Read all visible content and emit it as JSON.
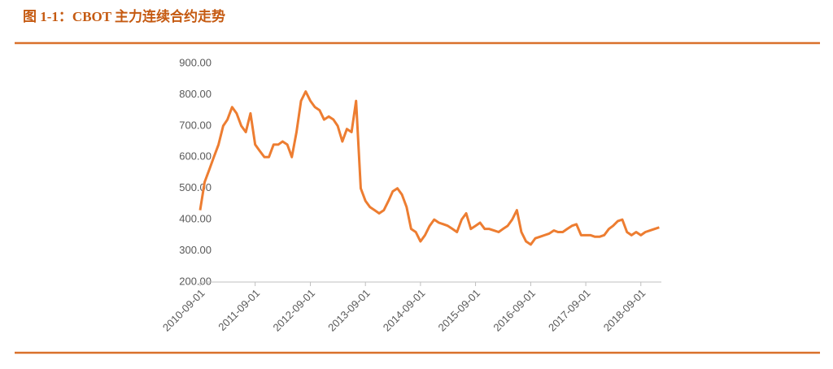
{
  "chart_data": {
    "type": "line",
    "title": "图 1-1：CBOT 主力连续合约走势",
    "x": [
      "2010-09-01",
      "2010-10-01",
      "2010-11-01",
      "2010-12-01",
      "2011-01-01",
      "2011-02-01",
      "2011-03-01",
      "2011-04-01",
      "2011-05-01",
      "2011-06-01",
      "2011-07-01",
      "2011-08-01",
      "2011-09-01",
      "2011-10-01",
      "2011-11-01",
      "2011-12-01",
      "2012-01-01",
      "2012-02-01",
      "2012-03-01",
      "2012-04-01",
      "2012-05-01",
      "2012-06-01",
      "2012-07-01",
      "2012-08-01",
      "2012-09-01",
      "2012-10-01",
      "2012-11-01",
      "2012-12-01",
      "2013-01-01",
      "2013-02-01",
      "2013-03-01",
      "2013-04-01",
      "2013-05-01",
      "2013-06-01",
      "2013-07-01",
      "2013-08-01",
      "2013-09-01",
      "2013-10-01",
      "2013-11-01",
      "2013-12-01",
      "2014-01-01",
      "2014-02-01",
      "2014-03-01",
      "2014-04-01",
      "2014-05-01",
      "2014-06-01",
      "2014-07-01",
      "2014-08-01",
      "2014-09-01",
      "2014-10-01",
      "2014-11-01",
      "2014-12-01",
      "2015-01-01",
      "2015-02-01",
      "2015-03-01",
      "2015-04-01",
      "2015-05-01",
      "2015-06-01",
      "2015-07-01",
      "2015-08-01",
      "2015-09-01",
      "2015-10-01",
      "2015-11-01",
      "2015-12-01",
      "2016-01-01",
      "2016-02-01",
      "2016-03-01",
      "2016-04-01",
      "2016-05-01",
      "2016-06-01",
      "2016-07-01",
      "2016-08-01",
      "2016-09-01",
      "2016-10-01",
      "2016-11-01",
      "2016-12-01",
      "2017-01-01",
      "2017-02-01",
      "2017-03-01",
      "2017-04-01",
      "2017-05-01",
      "2017-06-01",
      "2017-07-01",
      "2017-08-01",
      "2017-09-01",
      "2017-10-01",
      "2017-11-01",
      "2017-12-01",
      "2018-01-01",
      "2018-02-01",
      "2018-03-01",
      "2018-04-01",
      "2018-05-01",
      "2018-06-01",
      "2018-07-01",
      "2018-08-01",
      "2018-09-01",
      "2018-10-01",
      "2018-11-01",
      "2018-12-01",
      "2019-01-01"
    ],
    "series": [
      {
        "color": "#ed7d31",
        "values": [
          430,
          520,
          560,
          600,
          640,
          700,
          720,
          760,
          740,
          700,
          680,
          740,
          640,
          620,
          600,
          600,
          640,
          640,
          650,
          640,
          600,
          680,
          780,
          810,
          780,
          760,
          750,
          720,
          730,
          720,
          700,
          650,
          690,
          680,
          780,
          500,
          460,
          440,
          430,
          420,
          430,
          460,
          490,
          500,
          480,
          440,
          370,
          360,
          330,
          350,
          380,
          400,
          390,
          385,
          380,
          370,
          360,
          400,
          420,
          370,
          380,
          390,
          370,
          370,
          365,
          360,
          370,
          380,
          400,
          430,
          360,
          330,
          320,
          340,
          345,
          350,
          355,
          365,
          360,
          360,
          370,
          380,
          385,
          350,
          350,
          350,
          345,
          345,
          350,
          370,
          380,
          395,
          400,
          360,
          350,
          360,
          350,
          360,
          365,
          370,
          375
        ]
      }
    ],
    "xlim": [
      "2010-09-01",
      "2019-01-15"
    ],
    "xticks": [
      "2010-09-01",
      "2011-09-01",
      "2012-09-01",
      "2013-09-01",
      "2014-09-01",
      "2015-09-01",
      "2016-09-01",
      "2017-09-01",
      "2018-09-01"
    ],
    "ylim": [
      200,
      900
    ],
    "yticks": [
      {
        "value": 200,
        "label": "200.00"
      },
      {
        "value": 300,
        "label": "300.00"
      },
      {
        "value": 400,
        "label": "400.00"
      },
      {
        "value": 500,
        "label": "500.00"
      },
      {
        "value": 600,
        "label": "600.00"
      },
      {
        "value": 700,
        "label": "700.00"
      },
      {
        "value": 800,
        "label": "800.00"
      },
      {
        "value": 900,
        "label": "900.00"
      }
    ]
  }
}
